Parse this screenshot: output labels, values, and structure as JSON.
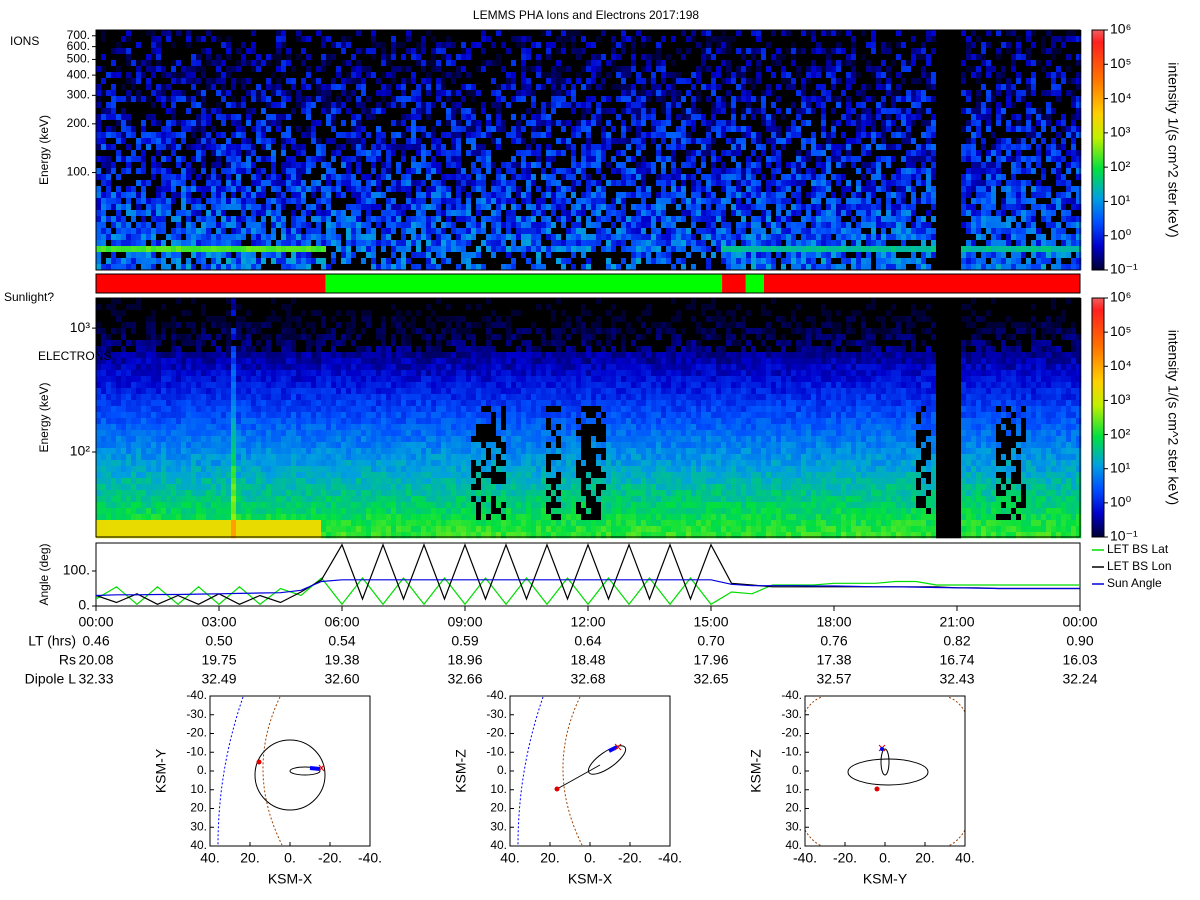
{
  "title": "LEMMS PHA Ions and Electrons  2017:198",
  "chart_data": [
    {
      "type": "spectrogram",
      "panel_label": "IONS",
      "ylabel": "Energy (keV)",
      "yscale": "log",
      "xlim": [
        0,
        24
      ],
      "ylim": [
        25,
        760
      ],
      "yticks": [
        {
          "value": 100,
          "label": "100."
        },
        {
          "value": 200,
          "label": "200."
        },
        {
          "value": 300,
          "label": "300."
        },
        {
          "value": 400,
          "label": "400."
        },
        {
          "value": 500,
          "label": "500."
        },
        {
          "value": 600,
          "label": "600."
        },
        {
          "value": 700,
          "label": "700."
        }
      ],
      "colorbar": {
        "label": "intensity 1/(s cm^2 ster keV)",
        "scale": "log",
        "lim": [
          0.1,
          1000000
        ],
        "ticks": [
          {
            "value": 0.1,
            "label": "10⁻¹"
          },
          {
            "value": 1,
            "label": "10⁰"
          },
          {
            "value": 10,
            "label": "10¹"
          },
          {
            "value": 100,
            "label": "10²"
          },
          {
            "value": 1000,
            "label": "10³"
          },
          {
            "value": 10000,
            "label": "10⁴"
          },
          {
            "value": 100000,
            "label": "10⁵"
          },
          {
            "value": 1000000,
            "label": "10⁶"
          }
        ]
      }
    },
    {
      "type": "status_bar",
      "label": "Sunlight?",
      "xlim": [
        0,
        24
      ],
      "segments": [
        {
          "start": 0,
          "end": 5.6,
          "color": "#ff0000"
        },
        {
          "start": 5.6,
          "end": 15.27,
          "color": "#00ff00"
        },
        {
          "start": 15.27,
          "end": 15.85,
          "color": "#ff0000"
        },
        {
          "start": 15.85,
          "end": 16.29,
          "color": "#00ff00"
        },
        {
          "start": 16.29,
          "end": 24,
          "color": "#ff0000"
        }
      ]
    },
    {
      "type": "spectrogram",
      "panel_label": "ELECTRONS",
      "ylabel": "Energy (keV)",
      "yscale": "log",
      "xlim": [
        0,
        24
      ],
      "ylim": [
        20.6,
        1750
      ],
      "yticks": [
        {
          "value": 100,
          "label": "10²"
        },
        {
          "value": 1000,
          "label": "10³"
        }
      ],
      "colorbar": {
        "label": "intensity 1/(s cm^2 ster keV)",
        "scale": "log",
        "lim": [
          0.1,
          1000000
        ],
        "ticks": [
          {
            "value": 0.1,
            "label": "10⁻¹"
          },
          {
            "value": 1,
            "label": "10⁰"
          },
          {
            "value": 10,
            "label": "10¹"
          },
          {
            "value": 100,
            "label": "10²"
          },
          {
            "value": 1000,
            "label": "10³"
          },
          {
            "value": 10000,
            "label": "10⁴"
          },
          {
            "value": 100000,
            "label": "10⁵"
          },
          {
            "value": 1000000,
            "label": "10⁶"
          }
        ]
      }
    },
    {
      "type": "line",
      "ylabel": "Angle (deg)",
      "xlim": [
        0,
        24
      ],
      "ylim": [
        0,
        180
      ],
      "legend": "right",
      "xticks": [
        {
          "value": 0,
          "label": "00:00"
        },
        {
          "value": 3,
          "label": "03:00"
        },
        {
          "value": 6,
          "label": "06:00"
        },
        {
          "value": 9,
          "label": "09:00"
        },
        {
          "value": 12,
          "label": "12:00"
        },
        {
          "value": 15,
          "label": "15:00"
        },
        {
          "value": 18,
          "label": "18:00"
        },
        {
          "value": 21,
          "label": "21:00"
        },
        {
          "value": 24,
          "label": "00:00"
        }
      ],
      "yticks": [
        {
          "value": 0,
          "label": "0."
        },
        {
          "value": 100,
          "label": "100."
        }
      ],
      "x": [
        0,
        0.5,
        1,
        1.5,
        2,
        2.5,
        3,
        3.5,
        4,
        4.5,
        5,
        5.5,
        6,
        6.5,
        7,
        7.5,
        8,
        8.5,
        9,
        9.5,
        10,
        10.5,
        11,
        11.5,
        12,
        12.5,
        13,
        13.5,
        14,
        14.5,
        15,
        15.5,
        16,
        16.5,
        17,
        17.5,
        18,
        18.5,
        19,
        19.5,
        20,
        20.5,
        21,
        21.5,
        22,
        22.5,
        23,
        23.5,
        24
      ],
      "series": [
        {
          "name": "LET BS Lat",
          "color": "#00dd00",
          "values": [
            20,
            55,
            5,
            55,
            5,
            55,
            5,
            55,
            5,
            50,
            30,
            80,
            5,
            80,
            5,
            80,
            5,
            80,
            5,
            80,
            5,
            80,
            5,
            80,
            5,
            80,
            5,
            80,
            5,
            80,
            5,
            40,
            35,
            60,
            60,
            60,
            65,
            65,
            65,
            70,
            70,
            60,
            60,
            60,
            60,
            60,
            60,
            60,
            60
          ]
        },
        {
          "name": "LET BS Lon",
          "color": "#000000",
          "values": [
            30,
            10,
            35,
            5,
            30,
            5,
            35,
            5,
            30,
            10,
            40,
            75,
            175,
            20,
            175,
            20,
            175,
            20,
            175,
            20,
            175,
            20,
            175,
            20,
            175,
            20,
            175,
            20,
            175,
            20,
            175,
            65,
            60,
            55,
            55,
            55,
            55,
            55,
            55,
            55,
            55,
            55,
            52,
            52,
            50,
            50,
            50,
            50,
            50
          ]
        },
        {
          "name": "Sun Angle",
          "color": "#0000dd",
          "values": [
            30,
            32,
            32,
            33,
            33,
            34,
            35,
            36,
            37,
            38,
            45,
            70,
            75,
            75,
            75,
            75,
            75,
            75,
            75,
            75,
            75,
            75,
            75,
            75,
            75,
            75,
            75,
            75,
            75,
            75,
            75,
            62,
            58,
            58,
            58,
            57,
            57,
            56,
            55,
            55,
            54,
            53,
            52,
            51,
            50,
            50,
            50,
            50,
            50
          ]
        }
      ]
    }
  ],
  "ephemeris": {
    "rows": [
      {
        "label": "LT (hrs)",
        "values": [
          "0.46",
          "0.50",
          "0.54",
          "0.59",
          "0.64",
          "0.70",
          "0.76",
          "0.82",
          "0.90"
        ]
      },
      {
        "label": "Rs",
        "values": [
          "20.08",
          "19.75",
          "19.38",
          "18.96",
          "18.48",
          "17.96",
          "17.38",
          "16.74",
          "16.03"
        ]
      },
      {
        "label": "Dipole L",
        "values": [
          "32.33",
          "32.49",
          "32.60",
          "32.66",
          "32.68",
          "32.65",
          "32.57",
          "32.43",
          "32.24"
        ]
      }
    ]
  },
  "orbits": [
    {
      "xlabel": "KSM-X",
      "ylabel": "KSM-Y",
      "xlim": [
        40,
        -40
      ],
      "ylim": [
        40,
        -40
      ],
      "xticks": [
        {
          "value": 40,
          "label": "40."
        },
        {
          "value": 20,
          "label": "20."
        },
        {
          "value": 0,
          "label": "0."
        },
        {
          "value": -20,
          "label": "-20."
        },
        {
          "value": -40,
          "label": "-40."
        }
      ],
      "yticks": [
        {
          "value": -40,
          "label": "-40."
        },
        {
          "value": -30,
          "label": "-30."
        },
        {
          "value": -20,
          "label": "-20."
        },
        {
          "value": -10,
          "label": "-10."
        },
        {
          "value": 0,
          "label": "0."
        },
        {
          "value": 10,
          "label": "10."
        },
        {
          "value": 20,
          "label": "20."
        },
        {
          "value": 30,
          "label": "30."
        },
        {
          "value": 40,
          "label": "40."
        }
      ]
    },
    {
      "xlabel": "KSM-X",
      "ylabel": "KSM-Z",
      "xlim": [
        40,
        -40
      ],
      "ylim": [
        40,
        -40
      ],
      "xticks": [
        {
          "value": 40,
          "label": "40."
        },
        {
          "value": 20,
          "label": "20."
        },
        {
          "value": 0,
          "label": "0."
        },
        {
          "value": -20,
          "label": "-20."
        },
        {
          "value": -40,
          "label": "-40."
        }
      ],
      "yticks": [
        {
          "value": -40,
          "label": "-40."
        },
        {
          "value": -30,
          "label": "-30."
        },
        {
          "value": -20,
          "label": "-20."
        },
        {
          "value": -10,
          "label": "-10."
        },
        {
          "value": 0,
          "label": "0."
        },
        {
          "value": 10,
          "label": "10."
        },
        {
          "value": 20,
          "label": "20."
        },
        {
          "value": 30,
          "label": "30."
        },
        {
          "value": 40,
          "label": "40."
        }
      ]
    },
    {
      "xlabel": "KSM-Y",
      "ylabel": "KSM-Z",
      "xlim": [
        -40,
        40
      ],
      "ylim": [
        40,
        -40
      ],
      "xticks": [
        {
          "value": -40,
          "label": "-40."
        },
        {
          "value": -20,
          "label": "-20."
        },
        {
          "value": 0,
          "label": "0."
        },
        {
          "value": 20,
          "label": "20."
        },
        {
          "value": 40,
          "label": "40."
        }
      ],
      "yticks": [
        {
          "value": -40,
          "label": "-40."
        },
        {
          "value": -30,
          "label": "-30."
        },
        {
          "value": -20,
          "label": "-20."
        },
        {
          "value": -10,
          "label": "-10."
        },
        {
          "value": 0,
          "label": "0."
        },
        {
          "value": 10,
          "label": "10."
        },
        {
          "value": 20,
          "label": "20."
        },
        {
          "value": 30,
          "label": "30."
        },
        {
          "value": 40,
          "label": "40."
        }
      ]
    }
  ]
}
